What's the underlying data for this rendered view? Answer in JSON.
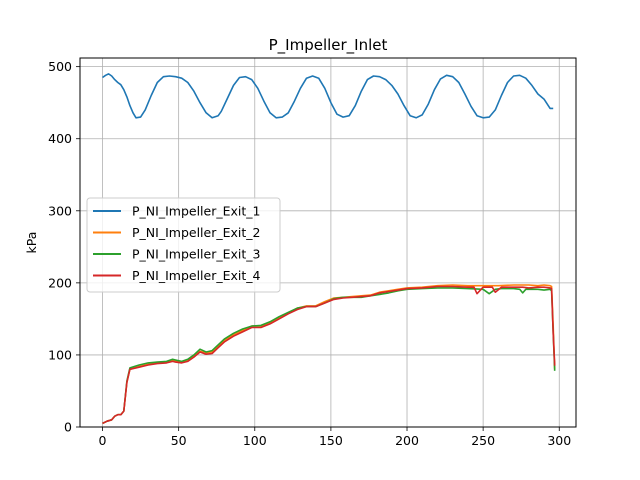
{
  "chart_data": {
    "type": "line",
    "title": "P_Impeller_Inlet",
    "xlabel": "",
    "ylabel": "kPa",
    "xlim": [
      -14.8,
      311.0
    ],
    "ylim": [
      0,
      512
    ],
    "xticks": [
      0,
      50,
      100,
      150,
      200,
      250,
      300
    ],
    "yticks": [
      0,
      100,
      200,
      300,
      400,
      500
    ],
    "grid": true,
    "legend_position": "center-left",
    "series": [
      {
        "name": "P_NI_Impeller_Exit_1",
        "color": "#1f77b4",
        "x": [
          0,
          2,
          4,
          6,
          8,
          10,
          12,
          14,
          16,
          18,
          20,
          22,
          25,
          28,
          32,
          36,
          40,
          44,
          48,
          52,
          56,
          60,
          64,
          68,
          72,
          76,
          78,
          82,
          86,
          90,
          94,
          98,
          102,
          106,
          110,
          114,
          118,
          122,
          126,
          130,
          134,
          138,
          142,
          146,
          150,
          154,
          158,
          162,
          166,
          170,
          174,
          178,
          182,
          186,
          190,
          194,
          198,
          202,
          206,
          210,
          214,
          218,
          222,
          226,
          230,
          234,
          238,
          242,
          246,
          250,
          254,
          258,
          262,
          266,
          270,
          274,
          278,
          282,
          286,
          290,
          294,
          296
        ],
        "y": [
          485,
          488,
          490,
          487,
          482,
          478,
          475,
          468,
          458,
          446,
          436,
          429,
          430,
          440,
          460,
          478,
          486,
          487,
          486,
          484,
          478,
          466,
          450,
          436,
          429,
          432,
          438,
          456,
          474,
          485,
          486,
          482,
          470,
          452,
          436,
          429,
          430,
          436,
          452,
          470,
          484,
          487,
          484,
          470,
          450,
          434,
          430,
          432,
          446,
          466,
          482,
          487,
          486,
          482,
          474,
          462,
          446,
          432,
          429,
          433,
          448,
          468,
          483,
          488,
          486,
          478,
          462,
          445,
          432,
          429,
          430,
          440,
          460,
          478,
          487,
          488,
          484,
          474,
          462,
          455,
          442,
          442
        ]
      },
      {
        "name": "P_NI_Impeller_Exit_2",
        "color": "#ff7f0e",
        "x": [
          0,
          3,
          6,
          8,
          10,
          12,
          14,
          16,
          18,
          24,
          30,
          36,
          42,
          46,
          48,
          52,
          56,
          60,
          64,
          68,
          72,
          76,
          80,
          86,
          92,
          98,
          104,
          110,
          116,
          122,
          128,
          134,
          140,
          146,
          152,
          158,
          164,
          170,
          176,
          182,
          188,
          194,
          200,
          210,
          220,
          230,
          240,
          250,
          260,
          270,
          280,
          286,
          290,
          294,
          295,
          296,
          297
        ],
        "y": [
          5,
          8,
          10,
          15,
          17,
          17,
          22,
          62,
          80,
          84,
          87,
          89,
          90,
          92,
          92,
          90,
          92,
          98,
          105,
          103,
          104,
          112,
          120,
          128,
          134,
          140,
          140,
          145,
          152,
          158,
          165,
          168,
          168,
          174,
          179,
          180,
          181,
          182,
          183,
          187,
          189,
          191,
          193,
          194,
          196,
          197,
          196,
          196,
          196,
          197,
          197,
          196,
          197,
          196,
          195,
          140,
          80
        ]
      },
      {
        "name": "P_NI_Impeller_Exit_3",
        "color": "#2ca02c",
        "x": [
          0,
          3,
          6,
          8,
          10,
          12,
          14,
          16,
          18,
          24,
          30,
          36,
          42,
          46,
          48,
          52,
          56,
          60,
          64,
          68,
          72,
          76,
          80,
          86,
          92,
          98,
          104,
          110,
          116,
          122,
          128,
          134,
          140,
          146,
          152,
          158,
          164,
          170,
          176,
          182,
          188,
          194,
          200,
          210,
          220,
          230,
          240,
          250,
          254,
          258,
          262,
          270,
          274,
          276,
          278,
          286,
          290,
          294,
          295,
          296,
          297
        ],
        "y": [
          5,
          8,
          10,
          15,
          17,
          17,
          22,
          64,
          82,
          86,
          89,
          90,
          91,
          94,
          93,
          91,
          94,
          100,
          108,
          104,
          106,
          114,
          122,
          130,
          136,
          140,
          141,
          146,
          153,
          159,
          165,
          167,
          167,
          172,
          178,
          180,
          180,
          180,
          182,
          184,
          186,
          189,
          191,
          192,
          193,
          193,
          192,
          191,
          185,
          191,
          192,
          192,
          191,
          186,
          191,
          191,
          190,
          191,
          189,
          130,
          78
        ]
      },
      {
        "name": "P_NI_Impeller_Exit_4",
        "color": "#d62728",
        "x": [
          0,
          3,
          6,
          8,
          10,
          12,
          14,
          16,
          18,
          24,
          30,
          36,
          42,
          46,
          48,
          52,
          56,
          60,
          64,
          68,
          72,
          76,
          80,
          86,
          92,
          98,
          104,
          110,
          116,
          122,
          128,
          134,
          140,
          146,
          152,
          158,
          164,
          170,
          176,
          182,
          188,
          194,
          200,
          210,
          220,
          230,
          240,
          244,
          246,
          250,
          256,
          258,
          262,
          270,
          276,
          280,
          286,
          290,
          294,
          295,
          296,
          297
        ],
        "y": [
          5,
          8,
          10,
          15,
          17,
          17,
          22,
          62,
          80,
          83,
          86,
          88,
          89,
          91,
          90,
          89,
          91,
          97,
          104,
          101,
          102,
          110,
          118,
          126,
          132,
          138,
          138,
          143,
          150,
          157,
          163,
          167,
          167,
          172,
          177,
          179,
          180,
          181,
          182,
          186,
          188,
          190,
          192,
          193,
          195,
          195,
          194,
          194,
          185,
          194,
          194,
          187,
          194,
          194,
          194,
          193,
          194,
          194,
          193,
          192,
          130,
          85
        ]
      }
    ]
  }
}
